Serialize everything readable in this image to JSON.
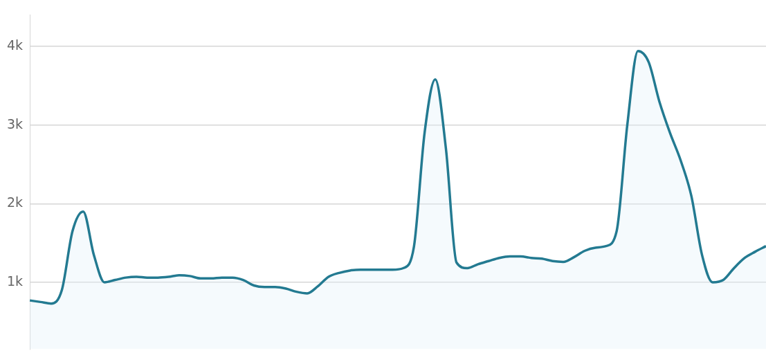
{
  "chart_data": {
    "type": "area",
    "categories": [
      null,
      null,
      null,
      null,
      null,
      null,
      null,
      null,
      null,
      null,
      null,
      null,
      null,
      null,
      null,
      null,
      null,
      null,
      null,
      null,
      null,
      null,
      null,
      null,
      null,
      null,
      null,
      null,
      null,
      null,
      null,
      null,
      null,
      null,
      null,
      null,
      null,
      null,
      null,
      null,
      null,
      null,
      null,
      null,
      null,
      null,
      null,
      null,
      null,
      null,
      null,
      null,
      null,
      null,
      null,
      null,
      null,
      null,
      null,
      null,
      null,
      null,
      null,
      null,
      null,
      null,
      null,
      null,
      null,
      null
    ],
    "series": [
      {
        "color": "#237a91",
        "values": [
          770,
          750,
          730,
          900,
          1650,
          1900,
          1350,
          1000,
          1030,
          1060,
          1070,
          1060,
          1060,
          1070,
          1090,
          1080,
          1050,
          1050,
          1060,
          1060,
          1030,
          960,
          940,
          940,
          920,
          880,
          860,
          950,
          1070,
          1120,
          1150,
          1160,
          1160,
          1160,
          1160,
          1180,
          1450,
          2900,
          3580,
          2700,
          1250,
          1180,
          1230,
          1270,
          1310,
          1330,
          1330,
          1310,
          1300,
          1270,
          1260,
          1320,
          1400,
          1440,
          1460,
          1650,
          3000,
          3940,
          3800,
          3300,
          2900,
          2550,
          2100,
          1350,
          1000,
          1030,
          1180,
          1310,
          1390,
          1460
        ]
      }
    ],
    "ylim": [
      150,
      4400
    ],
    "yticks": [
      {
        "value": 1000,
        "label": "1k"
      },
      {
        "value": 2000,
        "label": "2k"
      },
      {
        "value": 3000,
        "label": "3k"
      },
      {
        "value": 4000,
        "label": "4k"
      }
    ],
    "grid": "y",
    "legend": false,
    "marker": "none",
    "line_style": "solid",
    "tick_labels": "y"
  }
}
